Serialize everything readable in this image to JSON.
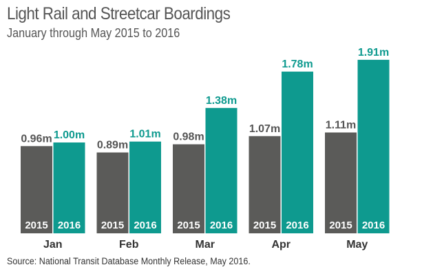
{
  "chart_data": {
    "type": "bar",
    "title": "Light Rail and Streetcar Boardings",
    "subtitle": "January through May 2015 to 2016",
    "source": "Source: National Transit Database Monthly Release, May 2016.",
    "categories": [
      "Jan",
      "Feb",
      "Mar",
      "Apr",
      "May"
    ],
    "series": [
      {
        "name": "2015",
        "values": [
          0.96,
          0.89,
          0.98,
          1.07,
          1.11
        ],
        "labels": [
          "0.96m",
          "0.89m",
          "0.98m",
          "1.07m",
          "1.11m"
        ],
        "color": "#5b5b59"
      },
      {
        "name": "2016",
        "values": [
          1.0,
          1.01,
          1.38,
          1.78,
          1.91
        ],
        "labels": [
          "1.00m",
          "1.01m",
          "1.38m",
          "1.78m",
          "1.91m"
        ],
        "color": "#0e9a8f"
      }
    ],
    "label_colors": {
      "2015": "#555555",
      "2016": "#0e9a8f"
    },
    "ylim": [
      0,
      2.0
    ],
    "grid": false,
    "legend": "none"
  }
}
